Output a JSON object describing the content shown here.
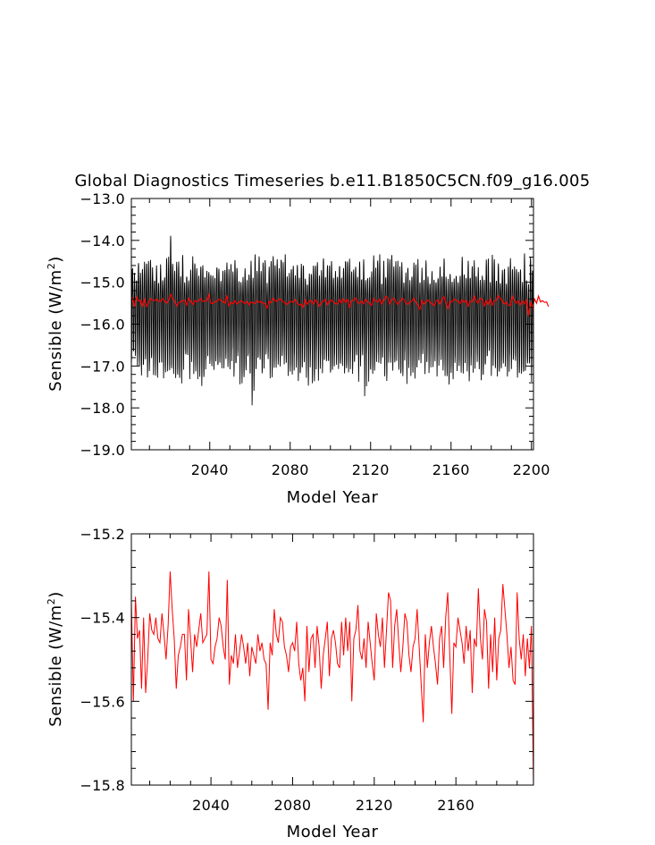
{
  "title": "Global Diagnostics Timeseries b.e11.B1850C5CN.f09_g16.005",
  "chart_data": [
    {
      "type": "line",
      "xlabel": "Model Year",
      "ylabel": "Sensible (W/m²)",
      "ylabel_base": "Sensible (W/m",
      "ylabel_sup": "2",
      "ylabel_close": ")",
      "xlim": [
        2001,
        2201
      ],
      "ylim": [
        -19.0,
        -13.0
      ],
      "x_ticks": [
        2040,
        2080,
        2120,
        2160,
        2200
      ],
      "y_ticks": [
        "-13.0",
        "-14.0",
        "-15.0",
        "-16.0",
        "-17.0",
        "-18.0",
        "-19.0"
      ],
      "y_tick_values": [
        -13.0,
        -14.0,
        -15.0,
        -16.0,
        -17.0,
        -18.0,
        -19.0
      ],
      "series": [
        {
          "description": "monthly values",
          "color": "#000000",
          "x_start": 2001,
          "x_end": 2200,
          "points_per_year": 12,
          "annual_max_range": [
            -15.0,
            -13.7
          ],
          "annual_min_range": [
            -18.1,
            -16.8
          ],
          "notable_extremes": [
            {
              "x": 2020.5,
              "y": -13.7
            },
            {
              "x": 2061.5,
              "y": -18.1
            },
            {
              "x": 2117.5,
              "y": -18.0
            }
          ]
        },
        {
          "description": "annual mean",
          "color": "#ff0000",
          "ref": "annual_means"
        }
      ]
    },
    {
      "type": "line",
      "xlabel": "Model Year",
      "ylabel": "Sensible (W/m²)",
      "ylabel_base": "Sensible (W/m",
      "ylabel_sup": "2",
      "ylabel_close": ")",
      "xlim": [
        2001,
        2198
      ],
      "ylim": [
        -15.8,
        -15.2
      ],
      "x_ticks": [
        2040,
        2080,
        2120,
        2160
      ],
      "y_ticks": [
        "-15.2",
        "-15.4",
        "-15.6",
        "-15.8"
      ],
      "y_tick_values": [
        -15.2,
        -15.4,
        -15.6,
        -15.8
      ],
      "series": [
        {
          "description": "annual mean",
          "color": "#ff0000",
          "x_start": 2001,
          "ref": "annual_means"
        }
      ]
    }
  ],
  "annual_means": [
    -15.36,
    -15.6,
    -15.35,
    -15.45,
    -15.43,
    -15.57,
    -15.4,
    -15.58,
    -15.5,
    -15.39,
    -15.43,
    -15.44,
    -15.4,
    -15.45,
    -15.46,
    -15.39,
    -15.44,
    -15.5,
    -15.42,
    -15.29,
    -15.38,
    -15.45,
    -15.57,
    -15.49,
    -15.47,
    -15.44,
    -15.44,
    -15.55,
    -15.38,
    -15.45,
    -15.53,
    -15.44,
    -15.47,
    -15.43,
    -15.39,
    -15.46,
    -15.45,
    -15.44,
    -15.29,
    -15.5,
    -15.51,
    -15.47,
    -15.45,
    -15.4,
    -15.42,
    -15.47,
    -15.5,
    -15.31,
    -15.56,
    -15.49,
    -15.51,
    -15.44,
    -15.52,
    -15.48,
    -15.44,
    -15.47,
    -15.51,
    -15.46,
    -15.54,
    -15.47,
    -15.49,
    -15.51,
    -15.44,
    -15.48,
    -15.46,
    -15.5,
    -15.51,
    -15.62,
    -15.46,
    -15.49,
    -15.38,
    -15.44,
    -15.46,
    -15.4,
    -15.41,
    -15.47,
    -15.49,
    -15.53,
    -15.47,
    -15.46,
    -15.48,
    -15.41,
    -15.51,
    -15.55,
    -15.52,
    -15.6,
    -15.42,
    -15.53,
    -15.45,
    -15.44,
    -15.52,
    -15.42,
    -15.47,
    -15.57,
    -15.49,
    -15.45,
    -15.41,
    -15.54,
    -15.45,
    -15.43,
    -15.46,
    -15.51,
    -15.52,
    -15.41,
    -15.49,
    -15.4,
    -15.48,
    -15.41,
    -15.6,
    -15.45,
    -15.43,
    -15.37,
    -15.48,
    -15.5,
    -15.45,
    -15.52,
    -15.41,
    -15.46,
    -15.51,
    -15.55,
    -15.39,
    -15.44,
    -15.47,
    -15.4,
    -15.52,
    -15.43,
    -15.34,
    -15.36,
    -15.52,
    -15.42,
    -15.38,
    -15.46,
    -15.53,
    -15.47,
    -15.39,
    -15.41,
    -15.49,
    -15.53,
    -15.47,
    -15.45,
    -15.38,
    -15.47,
    -15.56,
    -15.65,
    -15.44,
    -15.52,
    -15.46,
    -15.42,
    -15.47,
    -15.51,
    -15.56,
    -15.45,
    -15.42,
    -15.52,
    -15.4,
    -15.34,
    -15.49,
    -15.63,
    -15.46,
    -15.47,
    -15.4,
    -15.43,
    -15.46,
    -15.51,
    -15.42,
    -15.48,
    -15.43,
    -15.58,
    -15.45,
    -15.47,
    -15.33,
    -15.45,
    -15.5,
    -15.38,
    -15.41,
    -15.57,
    -15.44,
    -15.53,
    -15.4,
    -15.55,
    -15.45,
    -15.43,
    -15.32,
    -15.38,
    -15.44,
    -15.52,
    -15.47,
    -15.55,
    -15.56,
    -15.34,
    -15.45,
    -15.5,
    -15.44,
    -15.54,
    -15.45,
    -15.52,
    -15.42,
    -15.8,
    -15.47,
    -15.62,
    -15.4,
    -15.5,
    -15.33,
    -15.47,
    -15.44,
    -15.48,
    -15.47,
    -15.58
  ]
}
